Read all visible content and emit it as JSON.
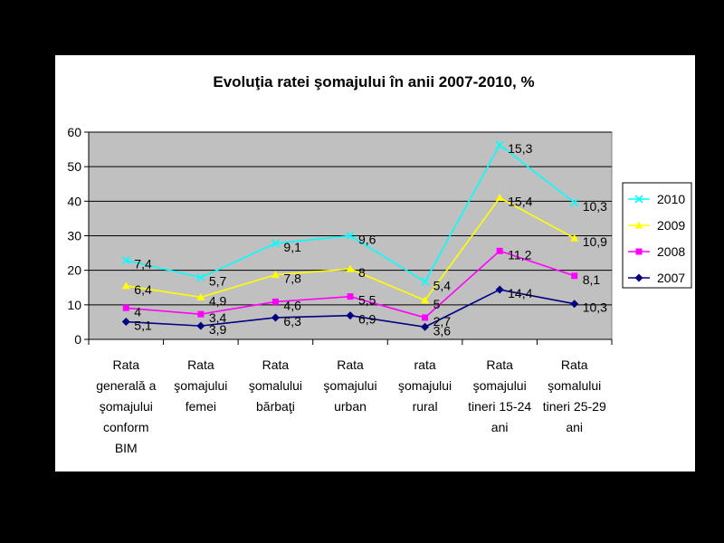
{
  "chart_data": {
    "type": "line",
    "title": "Evoluţia ratei şomajului în anii 2007-2010, %",
    "xlabel": "",
    "ylabel": "",
    "ylim": [
      0,
      60
    ],
    "yticks": [
      0,
      10,
      20,
      30,
      40,
      50,
      60
    ],
    "stacked": true,
    "grid": true,
    "plot_background": "#c0c0c0",
    "legend_position": "right",
    "categories": [
      [
        "Rata",
        "generală a",
        "şomajului",
        "conform",
        "BIM"
      ],
      [
        "Rata",
        "şomajului",
        "femei"
      ],
      [
        "Rata",
        "şomalului",
        "bărbaţi"
      ],
      [
        "Rata",
        "şomajului",
        "urban"
      ],
      [
        "rata",
        "şomajului",
        "rural"
      ],
      [
        "Rata",
        "şomajului",
        "tineri 15-24",
        "ani"
      ],
      [
        "Rata",
        "şomalului",
        "tineri 25-29",
        "ani"
      ]
    ],
    "series": [
      {
        "name": "2007",
        "color": "#000080",
        "marker": "diamond",
        "values": [
          5.1,
          3.9,
          6.3,
          6.9,
          3.6,
          14.4,
          10.3
        ],
        "labels": [
          "5,1",
          "3,9",
          "6,3",
          "6,9",
          "3,6",
          "14,4",
          "10,3"
        ]
      },
      {
        "name": "2008",
        "color": "#ff00ff",
        "marker": "square",
        "values": [
          4,
          3.4,
          4.6,
          5.5,
          2.7,
          11.2,
          8.1
        ],
        "labels": [
          "4",
          "3,4",
          "4,6",
          "5,5",
          "2,7",
          "11,2",
          "8,1"
        ]
      },
      {
        "name": "2009",
        "color": "#ffff00",
        "marker": "triangle",
        "values": [
          6.4,
          4.9,
          7.8,
          8,
          5,
          15.4,
          10.9
        ],
        "labels": [
          "6,4",
          "4,9",
          "7,8",
          "8",
          "5",
          "15,4",
          "10,9"
        ]
      },
      {
        "name": "2010",
        "color": "#00ffff",
        "marker": "x",
        "values": [
          7.4,
          5.7,
          9.1,
          9.6,
          5.4,
          15.3,
          10.3
        ],
        "labels": [
          "7,4",
          "5,7",
          "9,1",
          "9,6",
          "5,4",
          "15,3",
          "10,3"
        ]
      }
    ],
    "legend_order": [
      "2010",
      "2009",
      "2008",
      "2007"
    ]
  }
}
